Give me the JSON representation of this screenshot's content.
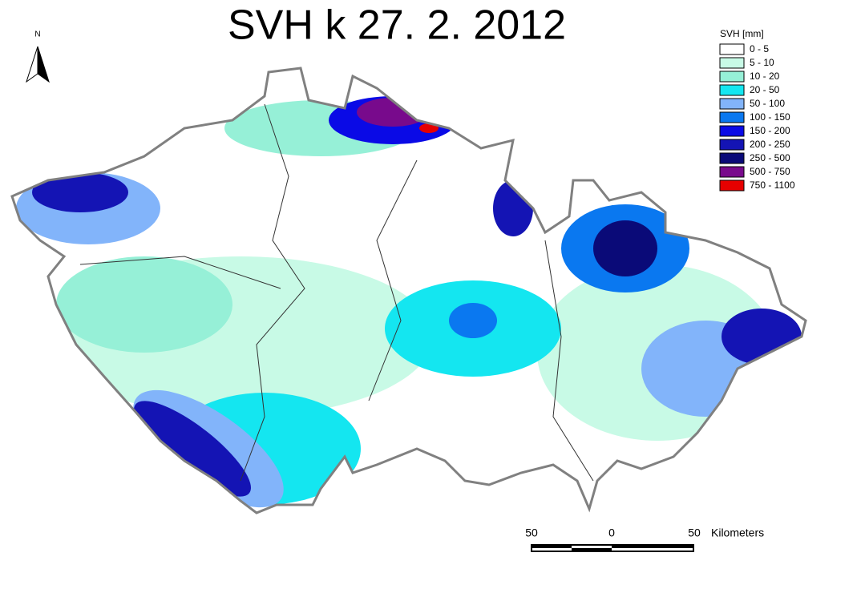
{
  "title": "SVH k 27. 2. 2012",
  "north": "N",
  "legend": {
    "title": "SVH [mm]",
    "items": [
      {
        "label": "0 - 5",
        "color": "#ffffff"
      },
      {
        "label": "5 - 10",
        "color": "#c8fae6"
      },
      {
        "label": "10 - 20",
        "color": "#96f0d7"
      },
      {
        "label": "20 - 50",
        "color": "#14e6f0"
      },
      {
        "label": "50 - 100",
        "color": "#82b4fa"
      },
      {
        "label": "100 - 150",
        "color": "#0a78f0"
      },
      {
        "label": "150 - 200",
        "color": "#0a0ae6"
      },
      {
        "label": "200 - 250",
        "color": "#1414b4"
      },
      {
        "label": "250 - 500",
        "color": "#0a0a78"
      },
      {
        "label": "500 - 750",
        "color": "#780a8c"
      },
      {
        "label": "750 - 1100",
        "color": "#e60000"
      }
    ]
  },
  "scale_bar": {
    "labels": [
      "50",
      "0",
      "50"
    ],
    "unit": "Kilometers"
  }
}
